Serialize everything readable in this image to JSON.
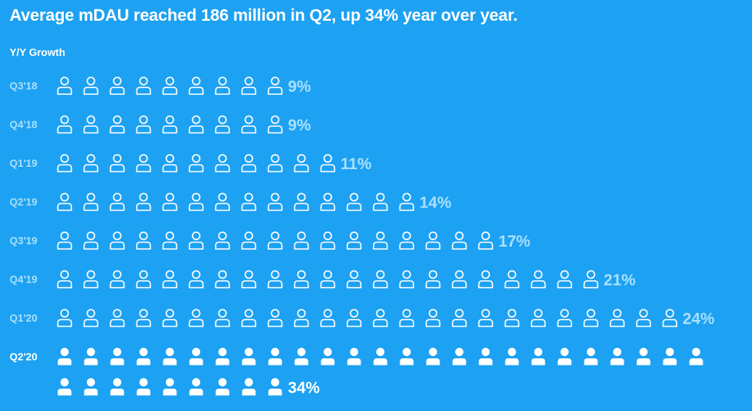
{
  "chart_data": {
    "type": "pictograph",
    "title": "Average mDAU reached 186 million in Q2, up 34% year over year.",
    "subtitle": "Y/Y Growth",
    "categories": [
      "Q3'18",
      "Q4'18",
      "Q1'19",
      "Q2'19",
      "Q3'19",
      "Q4'19",
      "Q1'20",
      "Q2'20"
    ],
    "values": [
      9,
      9,
      11,
      14,
      17,
      21,
      24,
      34
    ],
    "value_labels": [
      "9%",
      "9%",
      "11%",
      "14%",
      "17%",
      "21%",
      "24%",
      "34%"
    ],
    "highlight": "Q2'20"
  },
  "colors": {
    "background": "#1DA1F2",
    "icon_outline": "#ffffff",
    "label_muted": "#a9e0ff",
    "label_highlight": "#ffffff"
  },
  "icon": "person-icon"
}
